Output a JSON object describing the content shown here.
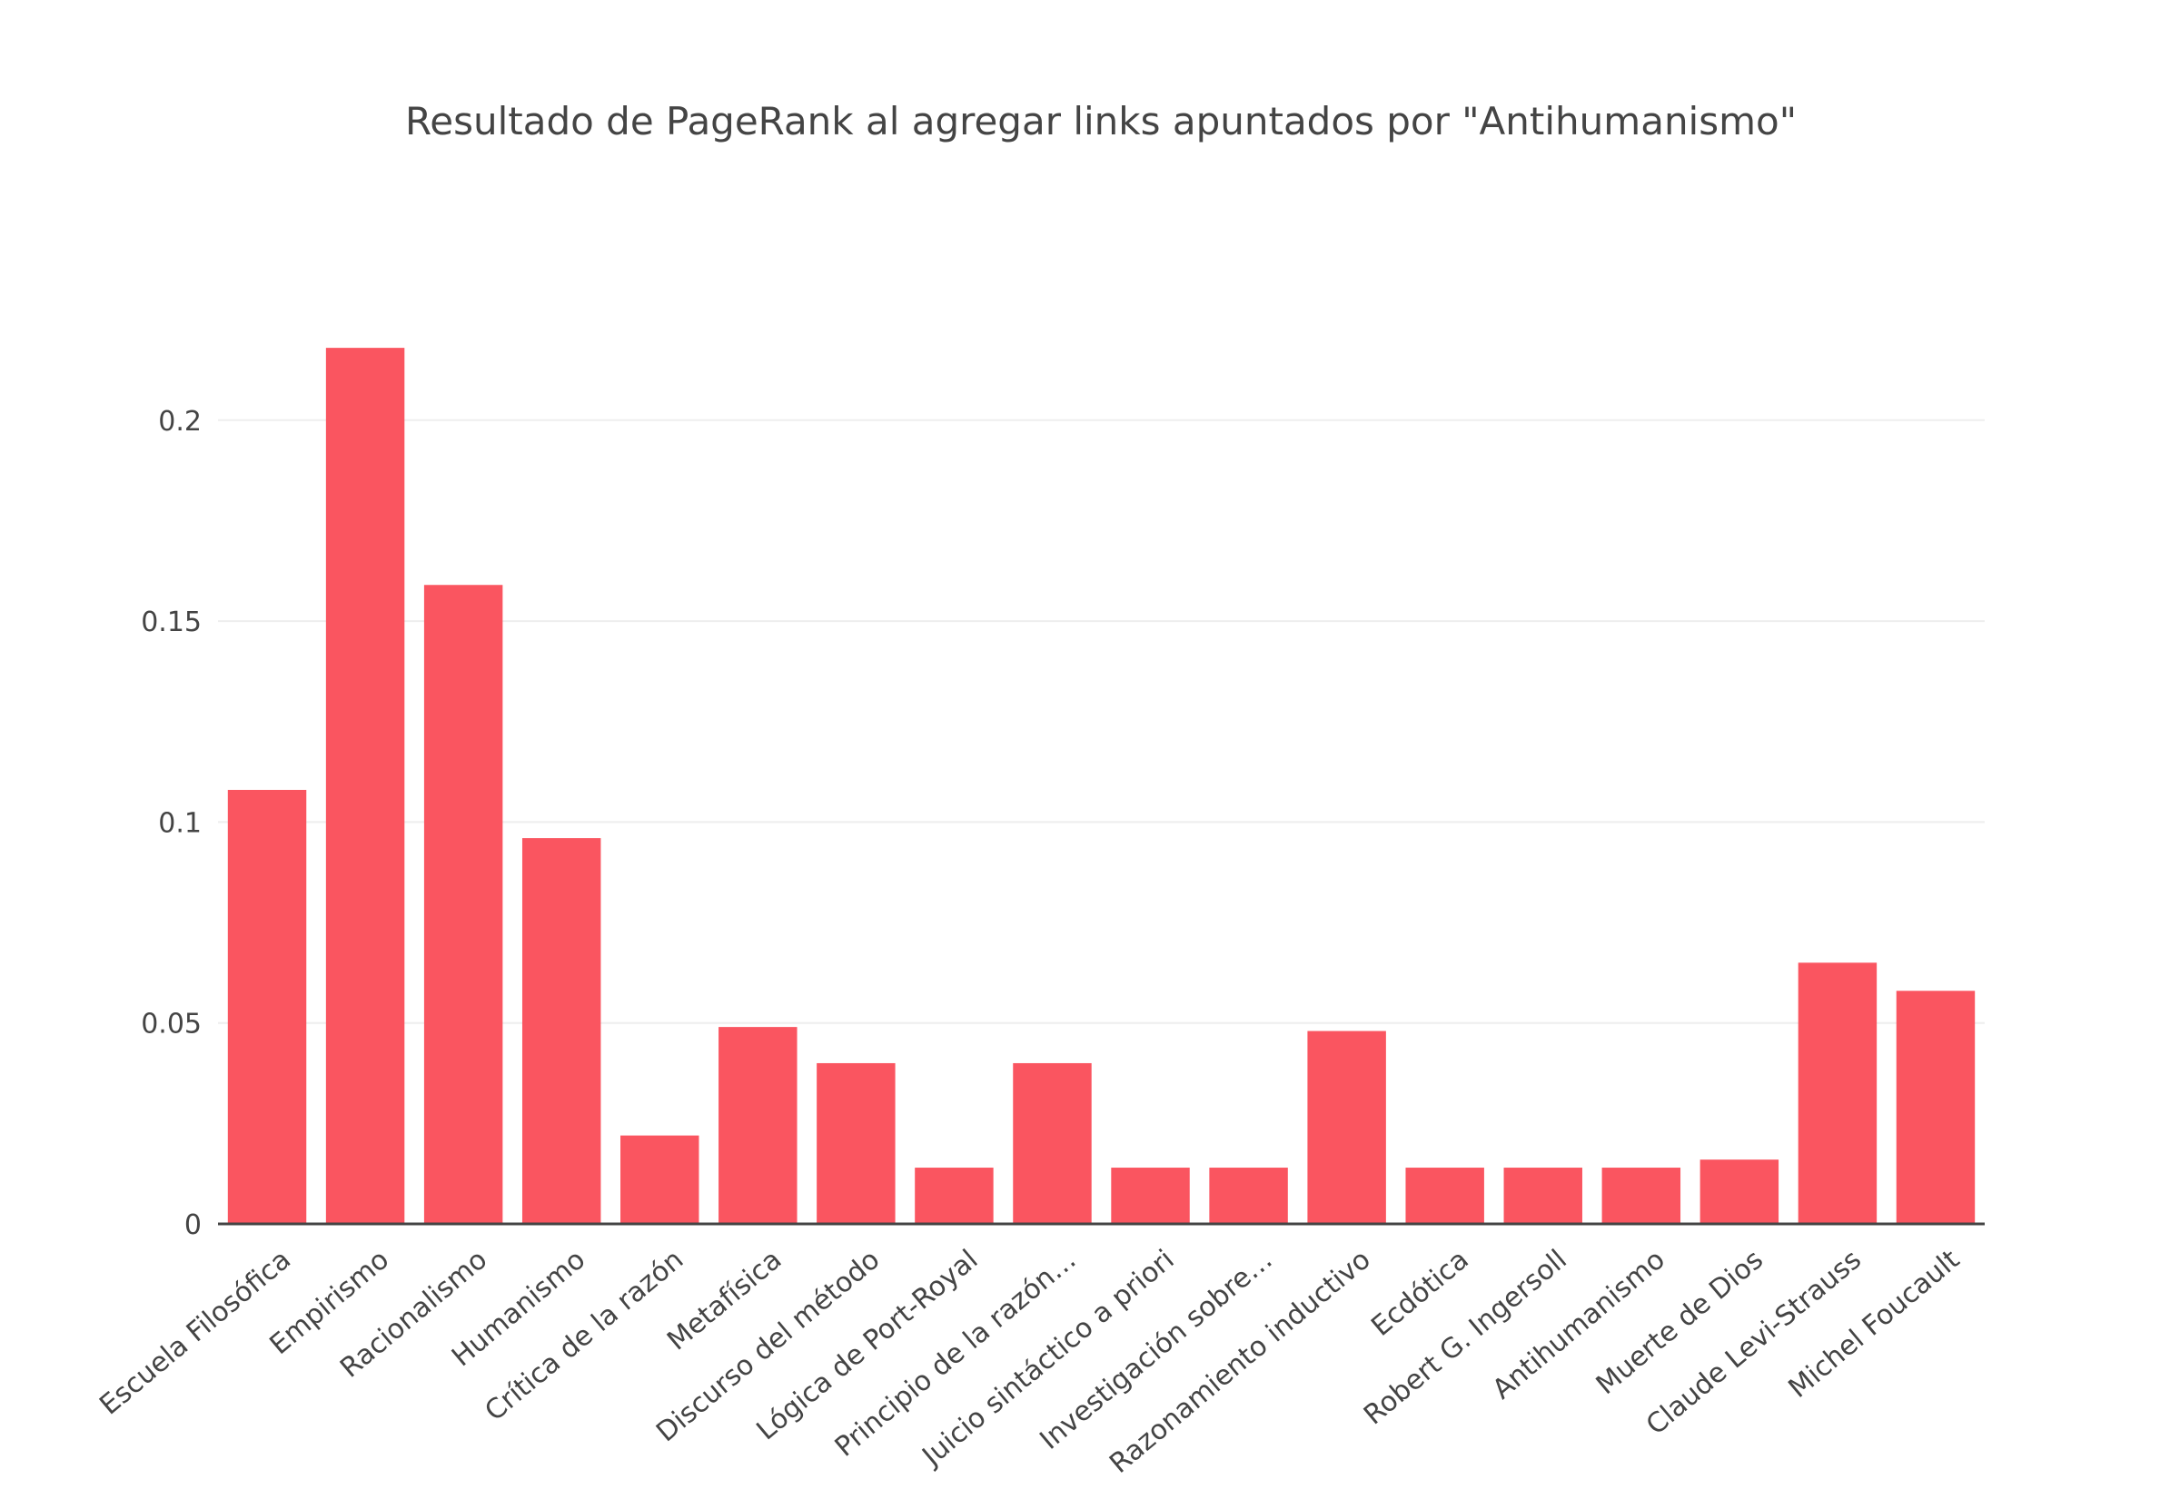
{
  "chart_data": {
    "type": "bar",
    "title": "Resultado de PageRank al agregar links apuntados por \"Antihumanismo\"",
    "xlabel": "",
    "ylabel": "",
    "ylim": [
      0,
      0.23
    ],
    "yticks": [
      0,
      0.05,
      0.1,
      0.15,
      0.2
    ],
    "ytick_labels": [
      "0",
      "0.05",
      "0.1",
      "0.15",
      "0.2"
    ],
    "grid": true,
    "color": "#fa5560",
    "categories": [
      "Escuela Filosófica",
      "Empirismo",
      "Racionalismo",
      "Humanismo",
      "Crítica de la razón",
      "Metafísica",
      "Discurso del método",
      "Lógica de Port-Royal",
      "Principio de la razón…",
      "Juicio sintáctico a priori",
      "Investigación sobre…",
      "Razonamiento inductivo",
      "Ecdótica",
      "Robert G. Ingersoll",
      "Antihumanismo",
      "Muerte de Dios",
      "Claude Levi-Strauss",
      "Michel Foucault"
    ],
    "values": [
      0.108,
      0.218,
      0.159,
      0.096,
      0.022,
      0.049,
      0.04,
      0.014,
      0.04,
      0.014,
      0.014,
      0.048,
      0.014,
      0.014,
      0.014,
      0.016,
      0.065,
      0.058
    ]
  }
}
